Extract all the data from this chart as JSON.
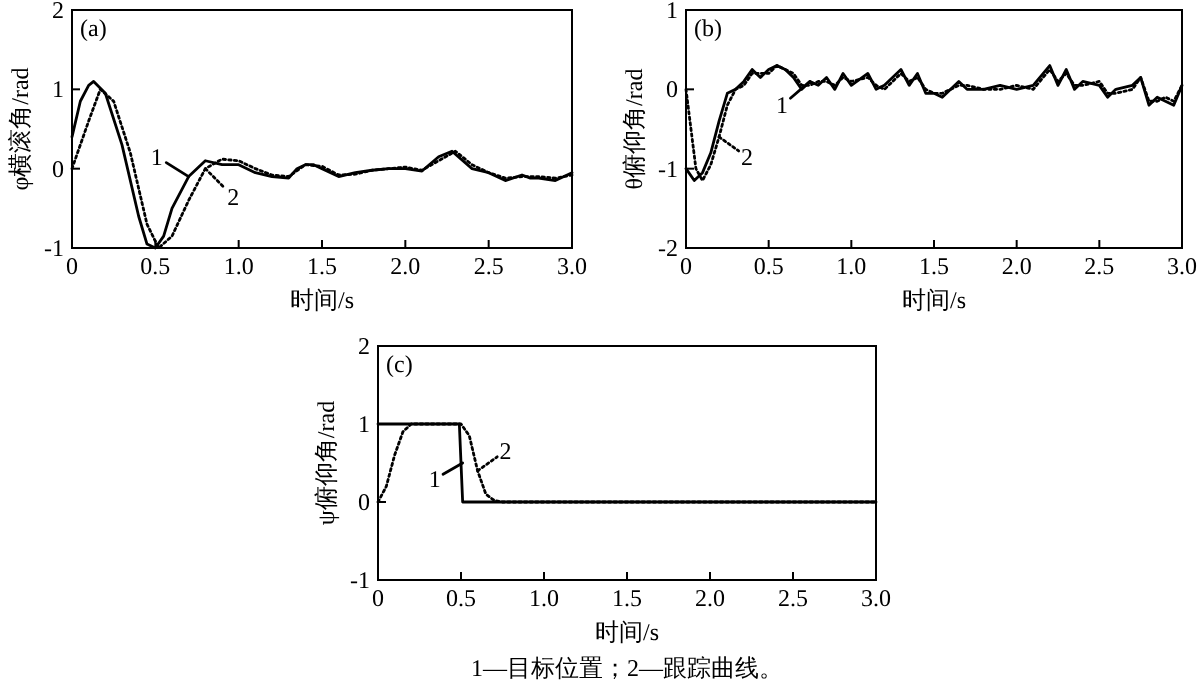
{
  "chart_data": [
    {
      "type": "line",
      "title": "(a)",
      "xlabel": "时间/s",
      "ylabel": "φ横滚角/rad",
      "xlim": [
        0,
        3
      ],
      "ylim": [
        -1,
        2
      ],
      "xticks": [
        0,
        0.5,
        {
          "value": 1,
          "label": "1.0"
        },
        1.5,
        {
          "value": 2,
          "label": "2.0"
        },
        2.5,
        {
          "value": 3,
          "label": "3.0"
        }
      ],
      "yticks": [
        -1,
        0,
        1,
        2
      ],
      "series": [
        {
          "name": "1",
          "color": "#000000",
          "line_style": "solid",
          "x": [
            0,
            0.05,
            0.1,
            0.13,
            0.2,
            0.3,
            0.4,
            0.45,
            0.5,
            0.55,
            0.6,
            0.7,
            0.8,
            0.9,
            1.0,
            1.1,
            1.2,
            1.3,
            1.35,
            1.4,
            1.45,
            1.5,
            1.6,
            1.7,
            1.8,
            1.9,
            2.0,
            2.1,
            2.2,
            2.28,
            2.4,
            2.5,
            2.6,
            2.7,
            2.75,
            2.8,
            2.9,
            3.0
          ],
          "values": [
            0.4,
            0.85,
            1.05,
            1.1,
            0.95,
            0.3,
            -0.6,
            -0.95,
            -1.0,
            -0.85,
            -0.5,
            -0.1,
            0.1,
            0.05,
            0.05,
            -0.05,
            -0.1,
            -0.12,
            0.0,
            0.05,
            0.05,
            0.0,
            -0.1,
            -0.05,
            -0.02,
            0.0,
            0.0,
            -0.03,
            0.15,
            0.22,
            0.0,
            -0.05,
            -0.15,
            -0.08,
            -0.12,
            -0.12,
            -0.15,
            -0.05
          ]
        },
        {
          "name": "2",
          "color": "#000000",
          "line_style": "dotted",
          "x": [
            0,
            0.1,
            0.17,
            0.25,
            0.35,
            0.45,
            0.52,
            0.6,
            0.7,
            0.8,
            0.9,
            1.0,
            1.1,
            1.2,
            1.3,
            1.4,
            1.5,
            1.6,
            1.7,
            1.8,
            1.9,
            2.0,
            2.1,
            2.2,
            2.3,
            2.4,
            2.5,
            2.6,
            2.7,
            2.8,
            2.9,
            3.0
          ],
          "values": [
            0,
            0.6,
            1.0,
            0.85,
            0.2,
            -0.7,
            -1.0,
            -0.85,
            -0.4,
            0.0,
            0.12,
            0.1,
            0.0,
            -0.08,
            -0.1,
            0.05,
            0.03,
            -0.08,
            -0.07,
            -0.02,
            0.0,
            0.02,
            -0.02,
            0.1,
            0.22,
            0.05,
            -0.05,
            -0.12,
            -0.1,
            -0.1,
            -0.12,
            -0.08
          ]
        }
      ]
    },
    {
      "type": "line",
      "title": "(b)",
      "xlabel": "时间/s",
      "ylabel": "θ俯仰角/rad",
      "xlim": [
        0,
        3
      ],
      "ylim": [
        -2,
        1
      ],
      "xticks": [
        0,
        0.5,
        {
          "value": 1,
          "label": "1.0"
        },
        1.5,
        {
          "value": 2,
          "label": "2.0"
        },
        2.5,
        {
          "value": 3,
          "label": "3.0"
        }
      ],
      "yticks": [
        -2,
        -1,
        0,
        1
      ],
      "series": [
        {
          "name": "1",
          "color": "#000000",
          "line_style": "solid",
          "x": [
            0,
            0.05,
            0.1,
            0.15,
            0.2,
            0.25,
            0.3,
            0.35,
            0.4,
            0.45,
            0.5,
            0.55,
            0.6,
            0.65,
            0.7,
            0.75,
            0.8,
            0.85,
            0.9,
            0.95,
            1.0,
            1.1,
            1.15,
            1.2,
            1.3,
            1.35,
            1.4,
            1.45,
            1.5,
            1.55,
            1.65,
            1.7,
            1.8,
            1.9,
            2.0,
            2.1,
            2.2,
            2.25,
            2.3,
            2.35,
            2.4,
            2.5,
            2.55,
            2.6,
            2.7,
            2.75,
            2.8,
            2.85,
            2.9,
            2.95,
            3.0
          ],
          "values": [
            -1.0,
            -1.15,
            -1.05,
            -0.8,
            -0.4,
            -0.05,
            0.0,
            0.1,
            0.25,
            0.15,
            0.25,
            0.3,
            0.25,
            0.15,
            0.0,
            0.1,
            0.05,
            0.15,
            0.0,
            0.2,
            0.05,
            0.2,
            0.0,
            0.05,
            0.25,
            0.05,
            0.2,
            -0.05,
            -0.05,
            -0.1,
            0.1,
            0.0,
            0.0,
            0.05,
            0.0,
            0.05,
            0.3,
            0.05,
            0.25,
            0.0,
            0.1,
            0.05,
            -0.1,
            0.0,
            0.05,
            0.15,
            -0.2,
            -0.1,
            -0.15,
            -0.2,
            0.05
          ]
        },
        {
          "name": "2",
          "color": "#000000",
          "line_style": "dotted",
          "x": [
            0,
            0.03,
            0.06,
            0.1,
            0.15,
            0.2,
            0.25,
            0.3,
            0.35,
            0.4,
            0.45,
            0.5,
            0.55,
            0.6,
            0.65,
            0.7,
            0.75,
            0.8,
            0.85,
            0.9,
            0.95,
            1.0,
            1.1,
            1.15,
            1.2,
            1.3,
            1.35,
            1.4,
            1.45,
            1.5,
            1.55,
            1.65,
            1.7,
            1.8,
            1.9,
            2.0,
            2.1,
            2.2,
            2.25,
            2.3,
            2.35,
            2.4,
            2.5,
            2.55,
            2.6,
            2.7,
            2.75,
            2.8,
            2.85,
            2.9,
            2.95,
            3.0
          ],
          "values": [
            0.0,
            -0.5,
            -1.0,
            -1.15,
            -0.95,
            -0.6,
            -0.2,
            0.0,
            0.05,
            0.2,
            0.2,
            0.2,
            0.3,
            0.25,
            0.2,
            0.05,
            0.05,
            0.1,
            0.1,
            0.05,
            0.15,
            0.1,
            0.15,
            0.05,
            0.0,
            0.2,
            0.1,
            0.15,
            0.0,
            -0.05,
            -0.05,
            0.05,
            0.05,
            0.0,
            0.0,
            0.05,
            0.0,
            0.25,
            0.1,
            0.2,
            0.05,
            0.05,
            0.1,
            -0.05,
            -0.05,
            0.0,
            0.15,
            -0.15,
            -0.15,
            -0.1,
            -0.15,
            0.05
          ]
        }
      ]
    },
    {
      "type": "line",
      "title": "(c)",
      "xlabel": "时间/s",
      "ylabel": "ψ俯仰角/rad",
      "xlim": [
        0,
        3
      ],
      "ylim": [
        -1,
        2
      ],
      "xticks": [
        0,
        0.5,
        {
          "value": 1,
          "label": "1.0"
        },
        1.5,
        {
          "value": 2,
          "label": "2.0"
        },
        2.5,
        {
          "value": 3,
          "label": "3.0"
        }
      ],
      "yticks": [
        -1,
        0,
        1,
        2
      ],
      "annotations": [
        "1—目标位置；2—跟踪曲线。"
      ],
      "series": [
        {
          "name": "1",
          "color": "#000000",
          "line_style": "solid",
          "x": [
            0,
            0.49,
            0.51,
            3
          ],
          "values": [
            1,
            1,
            0,
            0
          ]
        },
        {
          "name": "2",
          "color": "#000000",
          "line_style": "dotted",
          "x": [
            0,
            0.05,
            0.1,
            0.15,
            0.2,
            0.5,
            0.55,
            0.6,
            0.65,
            0.7,
            0.75,
            3
          ],
          "values": [
            0,
            0.2,
            0.6,
            0.9,
            1.0,
            1.0,
            0.85,
            0.4,
            0.1,
            0.02,
            0,
            0
          ]
        }
      ]
    }
  ]
}
